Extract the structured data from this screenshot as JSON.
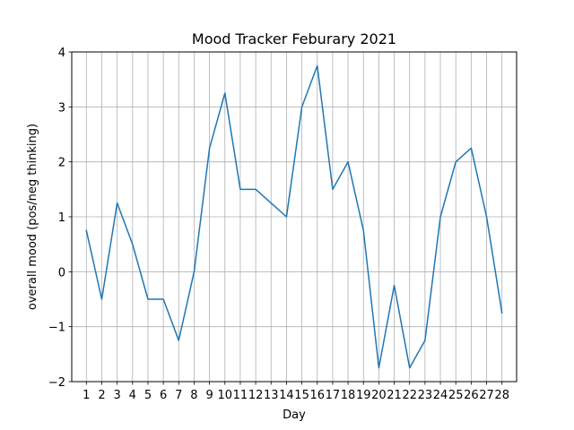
{
  "chart_data": {
    "type": "line",
    "title": "Mood Tracker Feburary 2021",
    "xlabel": "Day",
    "ylabel": "overall mood (pos/neg thinking)",
    "x": [
      1,
      2,
      3,
      4,
      5,
      6,
      7,
      8,
      9,
      10,
      11,
      12,
      13,
      14,
      15,
      16,
      17,
      18,
      19,
      20,
      21,
      22,
      23,
      24,
      25,
      26,
      27,
      28
    ],
    "x_tick_labels": [
      "1",
      "2",
      "3",
      "4",
      "5",
      "6",
      "7",
      "8",
      "9",
      "10",
      "11",
      "12",
      "13",
      "14",
      "15",
      "16",
      "17",
      "18",
      "19",
      "20",
      "21",
      "22",
      "23",
      "24",
      "25",
      "26",
      "27",
      "28"
    ],
    "series": [
      {
        "values": [
          0.75,
          -0.5,
          1.25,
          0.5,
          -0.5,
          -0.5,
          -1.25,
          0,
          2.25,
          3.25,
          1.5,
          1.5,
          1.25,
          1,
          3,
          3.75,
          1.5,
          2,
          0.75,
          -1.75,
          -0.25,
          -1.75,
          -1.25,
          1,
          2,
          2.25,
          1,
          -0.75
        ],
        "color": "#1f77b4"
      }
    ],
    "xlim": [
      0.05,
      28.95
    ],
    "ylim": [
      -2,
      4
    ],
    "y_ticks": [
      -2,
      -1,
      0,
      1,
      2,
      3,
      4
    ],
    "y_tick_labels": [
      "−2",
      "−1",
      "0",
      "1",
      "2",
      "3",
      "4"
    ],
    "grid": true,
    "grid_color": "#b0b0b0"
  }
}
